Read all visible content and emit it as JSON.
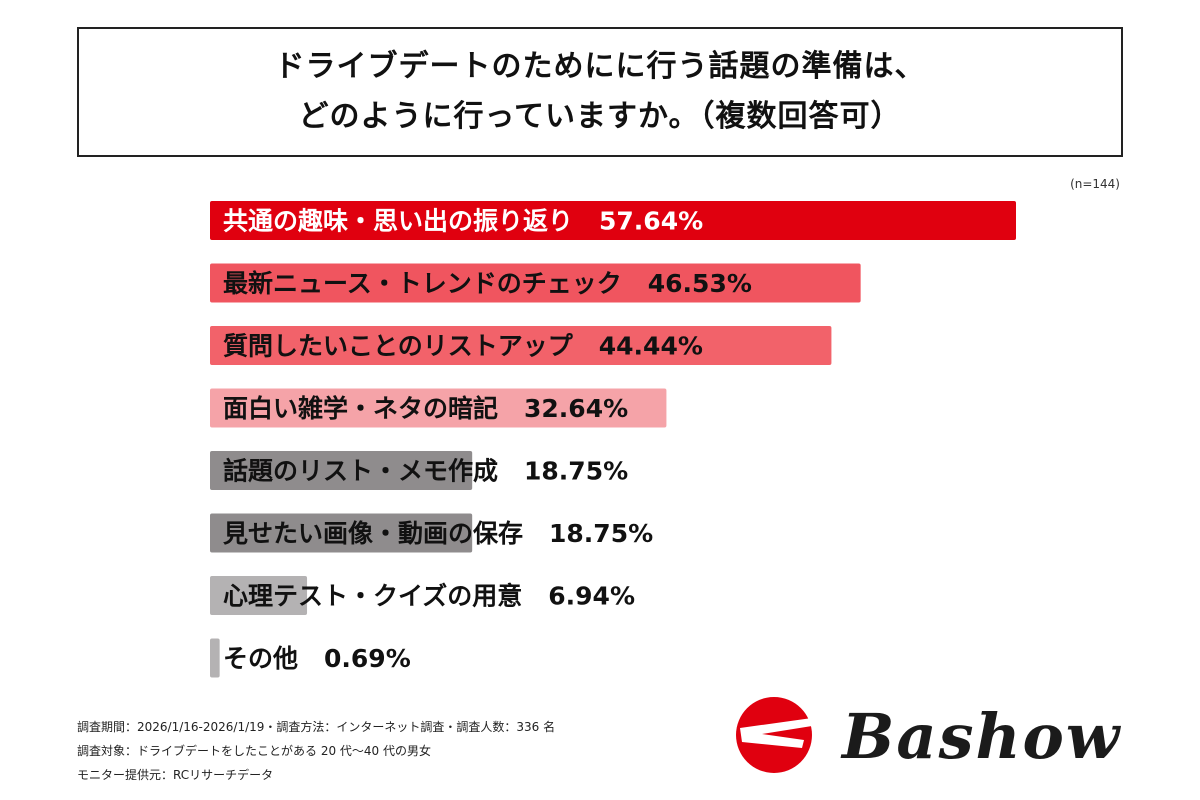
{
  "title": {
    "line1": "ドライブデートのためにに行う話題の準備は、",
    "line2": "どのように行っていますか。（複数回答可）"
  },
  "sample_note": "(n=144)",
  "chart_data": {
    "type": "bar",
    "orientation": "horizontal",
    "categories": [
      "共通の趣味・思い出の振り返り",
      "最新ニュース・トレンドのチェック",
      "質問したいことのリストアップ",
      "面白い雑学・ネタの暗記",
      "話題のリスト・メモ作成",
      "見せたい画像・動画の保存",
      "心理テスト・クイズの用意",
      "その他"
    ],
    "values": [
      57.64,
      46.53,
      44.44,
      32.64,
      18.75,
      18.75,
      6.94,
      0.69
    ],
    "value_labels": [
      "57.64%",
      "46.53%",
      "44.44%",
      "32.64%",
      "18.75%",
      "18.75%",
      "6.94%",
      "0.69%"
    ],
    "colors": [
      "#e0000f",
      "#f0555f",
      "#f2626a",
      "#f5a3a8",
      "#8f8c8d",
      "#8f8c8d",
      "#b4b2b3",
      "#b4b2b3"
    ],
    "xlim": [
      0,
      57.64
    ],
    "title": "",
    "xlabel": "",
    "ylabel": ""
  },
  "footer": {
    "line1": "調査期間：2026/1/16-2026/1/19・調査方法：インターネット調査・調査人数：336 名",
    "line2": "調査対象：ドライブデートをしたことがある 20 代〜40 代の男女",
    "line3": "モニター提供元：RCリサーチデータ"
  },
  "logo": {
    "text": "Bashow",
    "color": "#e0000f"
  }
}
